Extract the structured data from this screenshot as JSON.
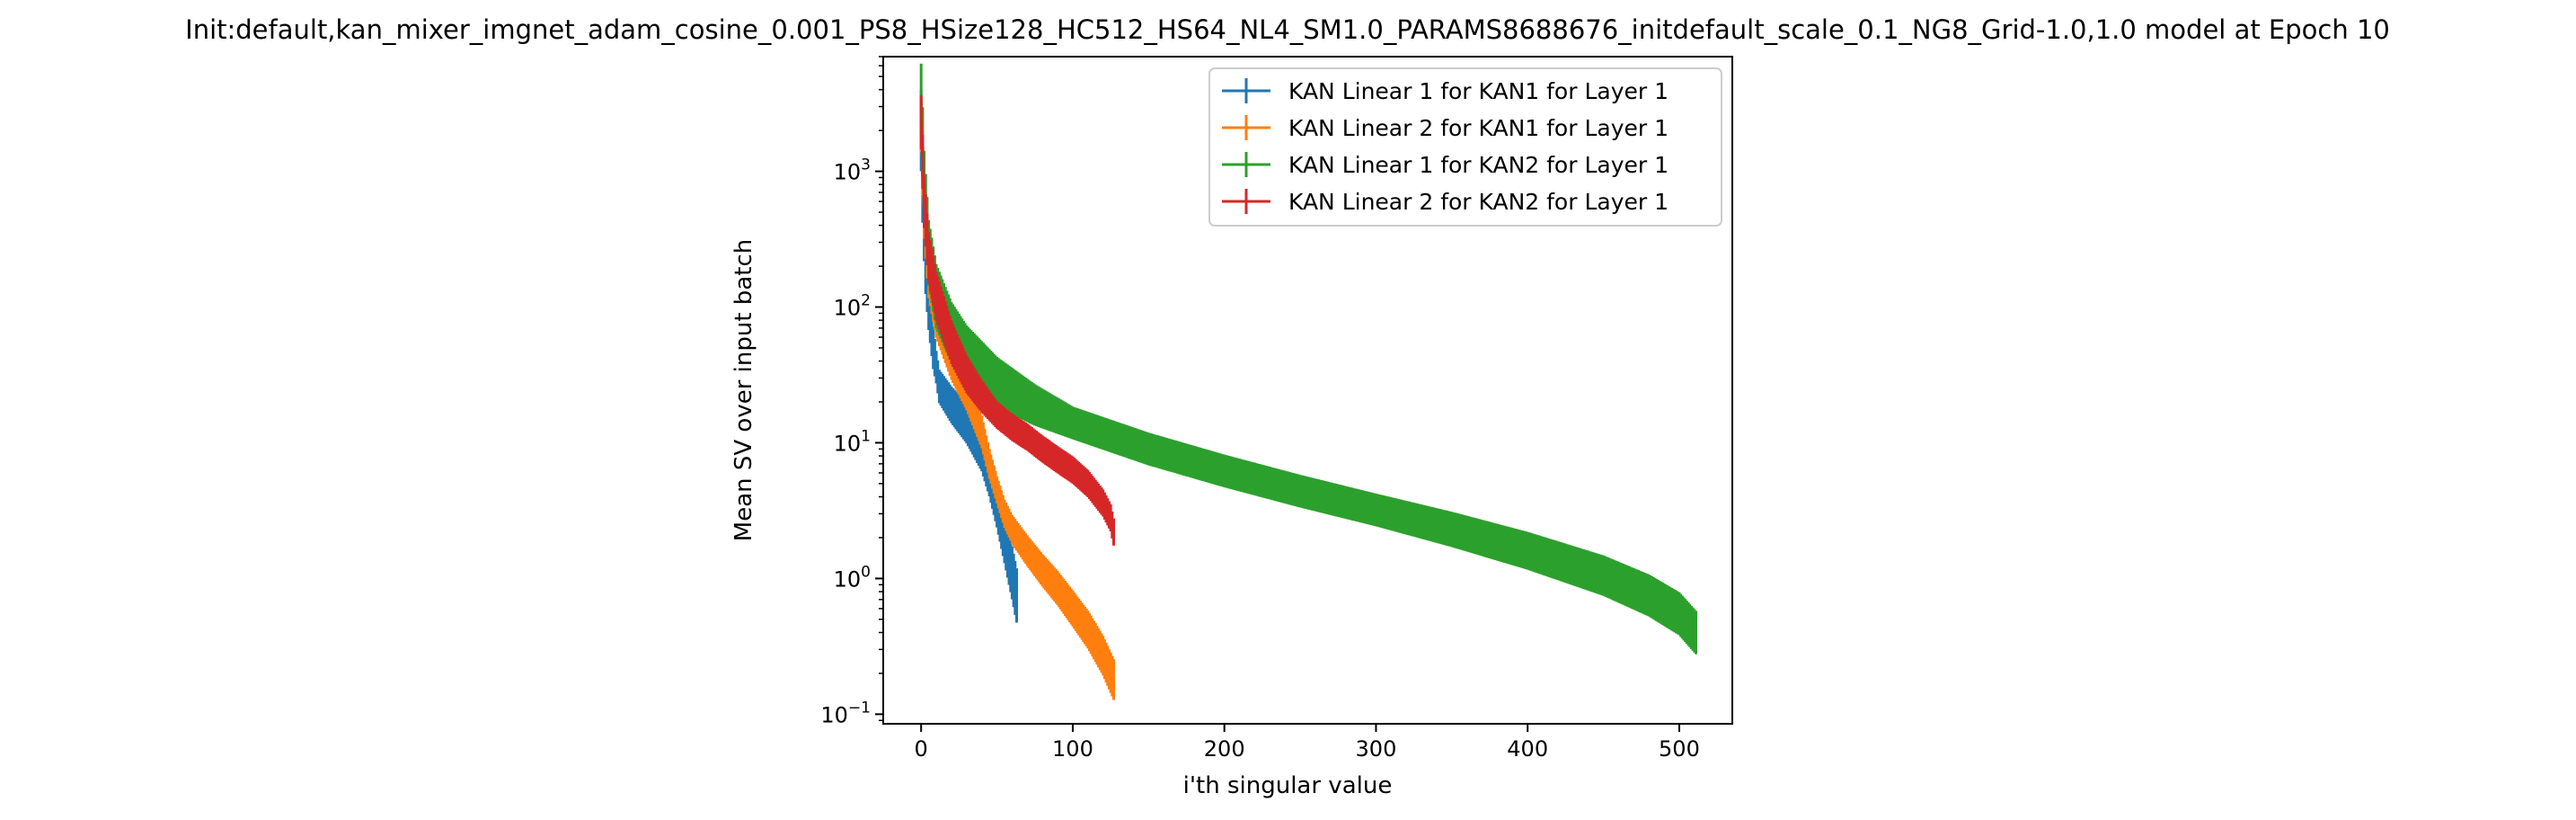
{
  "chart_data": {
    "type": "line",
    "title": "Init:default,kan_mixer_imgnet_adam_cosine_0.001_PS8_HSize128_HC512_HS64_NL4_SM1.0_PARAMS8688676_initdefault_scale_0.1_NG8_Grid-1.0,1.0 model at Epoch 10",
    "xlabel": "i'th singular value",
    "ylabel": "Mean SV over input batch",
    "yscale": "log",
    "xlim": [
      -25,
      535
    ],
    "ylim": [
      0.085,
      7000
    ],
    "grid": false,
    "legend_position": "top-right",
    "x_ticks": [
      {
        "value": 0,
        "label": "0"
      },
      {
        "value": 100,
        "label": "100"
      },
      {
        "value": 200,
        "label": "200"
      },
      {
        "value": 300,
        "label": "300"
      },
      {
        "value": 400,
        "label": "400"
      },
      {
        "value": 500,
        "label": "500"
      }
    ],
    "y_ticks": [
      {
        "value": 0.1,
        "base": "10",
        "exp": "−1"
      },
      {
        "value": 1,
        "base": "10",
        "exp": "0"
      },
      {
        "value": 10,
        "base": "10",
        "exp": "1"
      },
      {
        "value": 100,
        "base": "10",
        "exp": "2"
      },
      {
        "value": 1000,
        "base": "10",
        "exp": "3"
      }
    ],
    "series": [
      {
        "name": "KAN Linear 1 for KAN1 for Layer 1",
        "color": "#1f77b4",
        "n": 64,
        "points": [
          [
            0,
            2000
          ],
          [
            1,
            800
          ],
          [
            2,
            400
          ],
          [
            3,
            220
          ],
          [
            5,
            110
          ],
          [
            8,
            50
          ],
          [
            12,
            26
          ],
          [
            20,
            19
          ],
          [
            30,
            14
          ],
          [
            40,
            9
          ],
          [
            45,
            6
          ],
          [
            50,
            3.6
          ],
          [
            55,
            2.0
          ],
          [
            60,
            1.1
          ],
          [
            63,
            0.75
          ]
        ],
        "error": [
          [
            0,
            0.3
          ],
          [
            10,
            0.12
          ],
          [
            63,
            0.2
          ]
        ]
      },
      {
        "name": "KAN Linear 2 for KAN1 for Layer 1",
        "color": "#ff7f0e",
        "n": 128,
        "points": [
          [
            0,
            2200
          ],
          [
            2,
            500
          ],
          [
            5,
            180
          ],
          [
            10,
            90
          ],
          [
            20,
            42
          ],
          [
            30,
            24
          ],
          [
            40,
            12
          ],
          [
            45,
            7
          ],
          [
            50,
            4.5
          ],
          [
            55,
            3.0
          ],
          [
            60,
            2.3
          ],
          [
            70,
            1.6
          ],
          [
            80,
            1.15
          ],
          [
            90,
            0.85
          ],
          [
            100,
            0.6
          ],
          [
            110,
            0.42
          ],
          [
            120,
            0.27
          ],
          [
            127,
            0.18
          ]
        ],
        "error": [
          [
            0,
            0.2
          ],
          [
            50,
            0.1
          ],
          [
            127,
            0.15
          ]
        ]
      },
      {
        "name": "KAN Linear 1 for KAN2 for Layer 1",
        "color": "#2ca02c",
        "n": 512,
        "points": [
          [
            0,
            3500
          ],
          [
            2,
            800
          ],
          [
            5,
            250
          ],
          [
            10,
            120
          ],
          [
            20,
            65
          ],
          [
            30,
            45
          ],
          [
            50,
            28
          ],
          [
            75,
            19
          ],
          [
            100,
            14
          ],
          [
            150,
            9
          ],
          [
            200,
            6.2
          ],
          [
            250,
            4.4
          ],
          [
            300,
            3.2
          ],
          [
            350,
            2.3
          ],
          [
            400,
            1.6
          ],
          [
            450,
            1.05
          ],
          [
            480,
            0.75
          ],
          [
            500,
            0.55
          ],
          [
            511,
            0.4
          ]
        ],
        "error": [
          [
            0,
            0.25
          ],
          [
            100,
            0.12
          ],
          [
            300,
            0.12
          ],
          [
            511,
            0.16
          ]
        ]
      },
      {
        "name": "KAN Linear 2 for KAN2 for Layer 1",
        "color": "#d62728",
        "n": 128,
        "points": [
          [
            0,
            2300
          ],
          [
            2,
            600
          ],
          [
            5,
            230
          ],
          [
            10,
            120
          ],
          [
            20,
            55
          ],
          [
            30,
            32
          ],
          [
            40,
            22
          ],
          [
            50,
            16
          ],
          [
            60,
            13
          ],
          [
            70,
            11
          ],
          [
            80,
            9
          ],
          [
            90,
            7.5
          ],
          [
            100,
            6.3
          ],
          [
            110,
            5.0
          ],
          [
            120,
            3.6
          ],
          [
            125,
            2.8
          ],
          [
            127,
            2.2
          ]
        ],
        "error": [
          [
            0,
            0.2
          ],
          [
            50,
            0.1
          ],
          [
            127,
            0.1
          ]
        ]
      }
    ]
  }
}
